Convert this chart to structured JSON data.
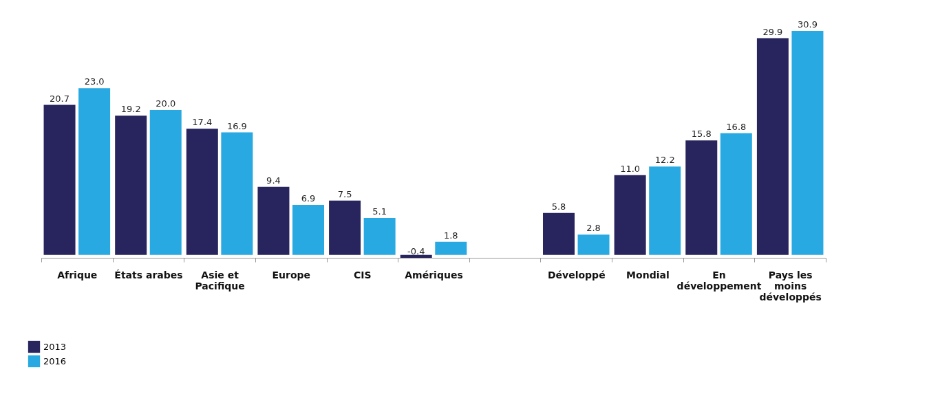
{
  "chart_data": {
    "type": "bar",
    "categories": [
      "Afrique",
      "États arabes",
      "Asie et Pacifique",
      "Europe",
      "CIS",
      "Amériques",
      null,
      "Développé",
      "Mondial",
      "En développement",
      "Pays les moins développés"
    ],
    "series": [
      {
        "name": "2013",
        "color": "#27245e",
        "values": [
          20.7,
          19.2,
          17.4,
          9.4,
          7.5,
          -0.4,
          null,
          5.8,
          11.0,
          15.8,
          29.9
        ],
        "value_labels": [
          "20.7",
          "19.2",
          "17.4",
          "9.4",
          "7.5",
          "-0.4",
          null,
          "5.8",
          "11.0",
          "15.8",
          "29.9"
        ]
      },
      {
        "name": "2016",
        "color": "#29a9e1",
        "values": [
          23.0,
          20.0,
          16.9,
          6.9,
          5.1,
          1.8,
          null,
          2.8,
          12.2,
          16.8,
          30.9
        ],
        "value_labels": [
          "23.0",
          "20.0",
          "16.9",
          "6.9",
          "5.1",
          "1.8",
          null,
          "2.8",
          "12.2",
          "16.8",
          "30.9"
        ]
      }
    ],
    "tick_labels": "x",
    "legend": "bottom left",
    "grid": false
  }
}
